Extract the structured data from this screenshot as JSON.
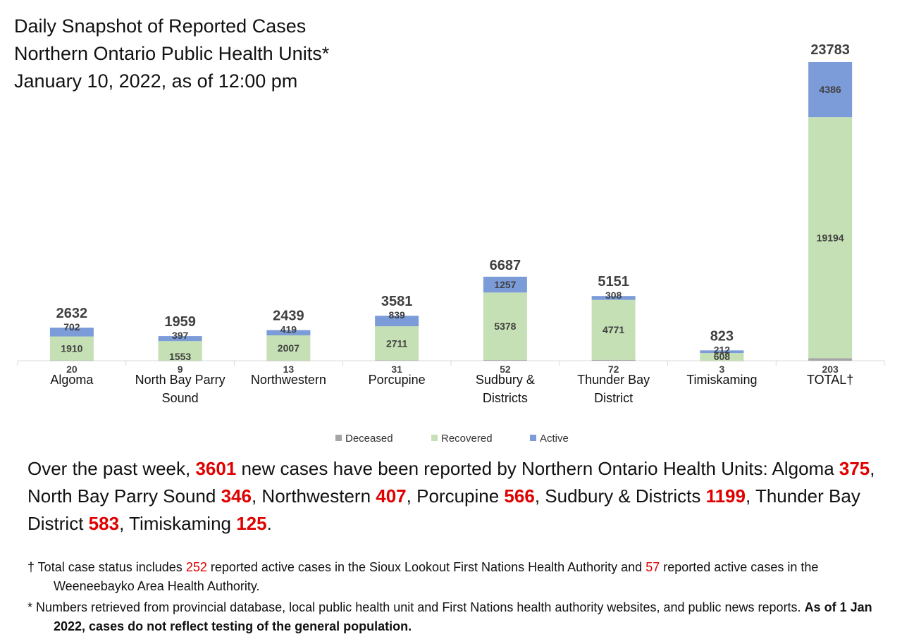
{
  "title": {
    "line1": "Daily Snapshot of Reported Cases",
    "line2": "Northern Ontario Public Health Units*",
    "line3": "January 10, 2022, as of 12:00 pm"
  },
  "chart_data": {
    "type": "bar",
    "stacked": true,
    "categories": [
      [
        "Algoma"
      ],
      [
        "North Bay Parry",
        "Sound"
      ],
      [
        "Northwestern"
      ],
      [
        "Porcupine"
      ],
      [
        "Sudbury &",
        "Districts"
      ],
      [
        "Thunder Bay",
        "District"
      ],
      [
        "Timiskaming"
      ],
      [
        "TOTAL†"
      ]
    ],
    "series": [
      {
        "name": "Deceased",
        "color": "#a5a5a5",
        "values": [
          20,
          9,
          13,
          31,
          52,
          72,
          3,
          203
        ]
      },
      {
        "name": "Recovered",
        "color": "#c5e0b4",
        "values": [
          1910,
          1553,
          2007,
          2711,
          5378,
          4771,
          608,
          19194
        ]
      },
      {
        "name": "Active",
        "color": "#7b9bd9",
        "values": [
          702,
          397,
          419,
          839,
          1257,
          308,
          212,
          4386
        ]
      }
    ],
    "totals": [
      2632,
      1959,
      2439,
      3581,
      6687,
      5151,
      823,
      23783
    ],
    "legend_position": "bottom",
    "grid": false
  },
  "summary": {
    "intro": "Over the past week, ",
    "total_new": "3601",
    "after_total": " new cases have been reported by Northern Ontario Health Units: ",
    "units": [
      {
        "name": "Algoma ",
        "value": "375",
        "sep": ", "
      },
      {
        "name": "North Bay Parry Sound ",
        "value": "346",
        "sep": ", "
      },
      {
        "name": "Northwestern ",
        "value": "407",
        "sep": ", "
      },
      {
        "name": "Porcupine ",
        "value": "566",
        "sep": ", "
      },
      {
        "name": "Sudbury & Districts ",
        "value": "1199",
        "sep": ", "
      },
      {
        "name": "Thunder Bay District ",
        "value": "583",
        "sep": ", "
      },
      {
        "name": "Timiskaming ",
        "value": "125",
        "sep": "."
      }
    ]
  },
  "footnotes": {
    "dagger": {
      "part1": "† Total case status includes ",
      "num1": "252",
      "part2": " reported active cases in the Sioux Lookout First Nations Health Authority and ",
      "num2": "57",
      "part3": " reported active cases in the Weeneebayko Area Health Authority."
    },
    "star": {
      "part1": "* Numbers retrieved from provincial database, local public health unit and First Nations health authority websites, and public news reports. ",
      "bold": "As of 1 Jan 2022, cases do not reflect testing of the general population."
    }
  }
}
